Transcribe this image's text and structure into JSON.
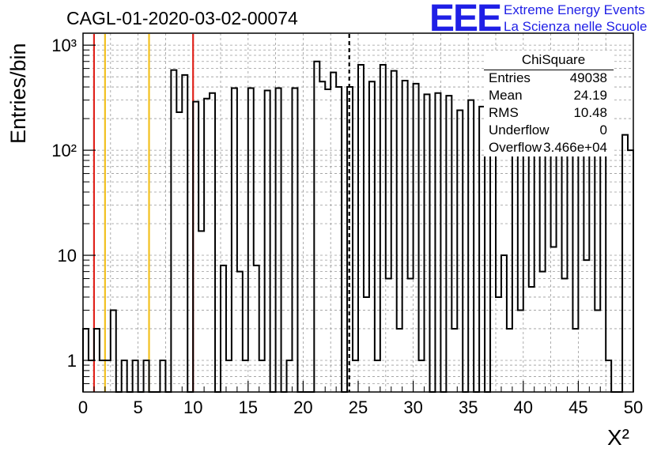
{
  "title": "CAGL-01-2020-03-02-00074",
  "logo": {
    "acronym": "EEE",
    "line1": "Extreme Energy Events",
    "line2": "La Scienza nelle Scuole",
    "color": "#1f1fe6"
  },
  "stats": {
    "name": "ChiSquare",
    "rows": [
      {
        "label": "Entries",
        "value": "49038"
      },
      {
        "label": "Mean",
        "value": "24.19"
      },
      {
        "label": "RMS",
        "value": "10.48"
      },
      {
        "label": "Underflow",
        "value": "0"
      },
      {
        "label": "Overflow",
        "value": "3.466e+04"
      }
    ]
  },
  "chart_data": {
    "type": "histogram",
    "xlabel": "X²",
    "ylabel": "Entries/bin",
    "xlim": [
      0,
      50
    ],
    "ylim": [
      0.5,
      1300
    ],
    "yscale": "log",
    "grid": true,
    "x_ticks": [
      "0",
      "5",
      "10",
      "15",
      "20",
      "25",
      "30",
      "35",
      "40",
      "45",
      "50"
    ],
    "y_ticks": [
      {
        "value": 1,
        "label": "1"
      },
      {
        "value": 10,
        "label": "10"
      },
      {
        "value": 100,
        "label": "10²"
      },
      {
        "value": 1000,
        "label": "10³"
      }
    ],
    "bin_width": 0.5,
    "bin_start": 0,
    "values": [
      2,
      1,
      2,
      1,
      1,
      3,
      0,
      1,
      0,
      1,
      0,
      1,
      0,
      0,
      1,
      0,
      580,
      230,
      520,
      0,
      290,
      17,
      310,
      350,
      0,
      8,
      1,
      390,
      7,
      1,
      390,
      8,
      1,
      370,
      0,
      390,
      0,
      1,
      390,
      0,
      0,
      0,
      700,
      450,
      380,
      550,
      400,
      0,
      400,
      1,
      650,
      4,
      450,
      1,
      650,
      6,
      570,
      2,
      460,
      6,
      430,
      1,
      340,
      0,
      350,
      0,
      330,
      2,
      240,
      0,
      300,
      0,
      260,
      0,
      240,
      4,
      10,
      2,
      380,
      3,
      400,
      5,
      200,
      7,
      270,
      12,
      130,
      6,
      270,
      2,
      130,
      9,
      140,
      3,
      160,
      1,
      0,
      0,
      140,
      100
    ],
    "vlines": [
      {
        "x": 1,
        "color": "#e0231c",
        "style": "solid"
      },
      {
        "x": 2,
        "color": "#f2c01f",
        "style": "solid"
      },
      {
        "x": 6,
        "color": "#f2c01f",
        "style": "solid"
      },
      {
        "x": 10,
        "color": "#e0231c",
        "style": "solid"
      },
      {
        "x": 24.19,
        "color": "#000000",
        "style": "dashed"
      }
    ]
  }
}
